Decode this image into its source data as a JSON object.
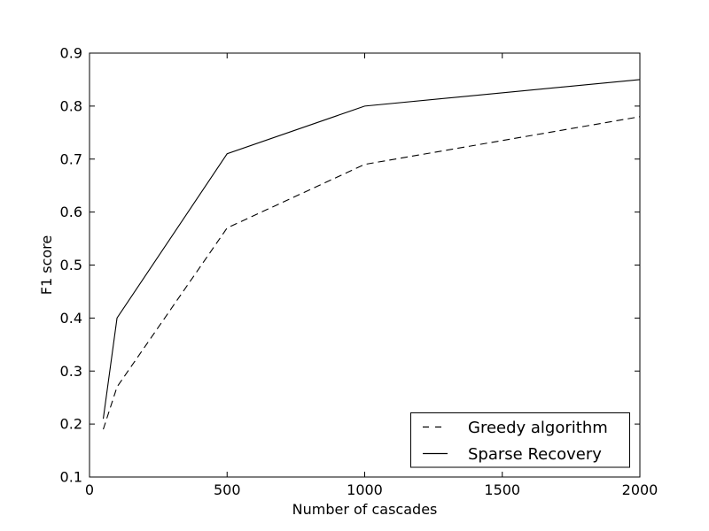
{
  "figure": {
    "background_color": "#ffffff",
    "line_color": "#000000"
  },
  "chart_data": {
    "type": "line",
    "title": "",
    "xlabel": "Number of cascades",
    "ylabel": "F1 score",
    "xlim": [
      0,
      2000
    ],
    "ylim": [
      0.1,
      0.9
    ],
    "xticks": [
      {
        "value": 0,
        "label": "0"
      },
      {
        "value": 500,
        "label": "500"
      },
      {
        "value": 1000,
        "label": "1000"
      },
      {
        "value": 1500,
        "label": "1500"
      },
      {
        "value": 2000,
        "label": "2000"
      }
    ],
    "yticks": [
      {
        "value": 0.1,
        "label": "0.1"
      },
      {
        "value": 0.2,
        "label": "0.2"
      },
      {
        "value": 0.3,
        "label": "0.3"
      },
      {
        "value": 0.4,
        "label": "0.4"
      },
      {
        "value": 0.5,
        "label": "0.5"
      },
      {
        "value": 0.6,
        "label": "0.6"
      },
      {
        "value": 0.7,
        "label": "0.7"
      },
      {
        "value": 0.8,
        "label": "0.8"
      },
      {
        "value": 0.9,
        "label": "0.9"
      }
    ],
    "x": [
      50,
      100,
      500,
      1000,
      2000
    ],
    "series": [
      {
        "name": "Greedy algorithm",
        "linestyle": "dashed",
        "color": "#000000",
        "values": [
          0.19,
          0.27,
          0.57,
          0.69,
          0.78
        ]
      },
      {
        "name": "Sparse Recovery",
        "linestyle": "solid",
        "color": "#000000",
        "values": [
          0.21,
          0.4,
          0.71,
          0.8,
          0.85
        ]
      }
    ],
    "legend": {
      "position": "lower right",
      "entries": [
        "Greedy algorithm",
        "Sparse Recovery"
      ]
    },
    "grid": false,
    "tick_direction": "in"
  }
}
